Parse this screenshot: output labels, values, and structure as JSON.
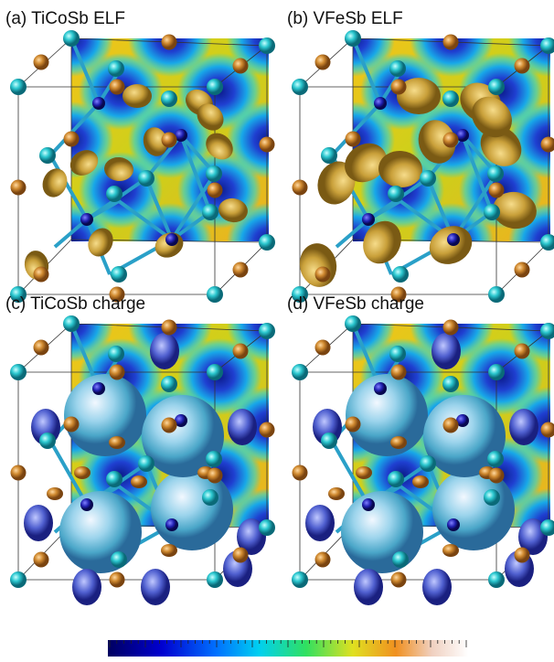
{
  "panels": [
    {
      "label": "(a) TiCoSb ELF",
      "kind": "elf"
    },
    {
      "label": "(b) VFeSb ELF",
      "kind": "elf"
    },
    {
      "label": "(c) TiCoSb charge",
      "kind": "charge"
    },
    {
      "label": "(d) VFeSb charge",
      "kind": "charge"
    }
  ]
}
